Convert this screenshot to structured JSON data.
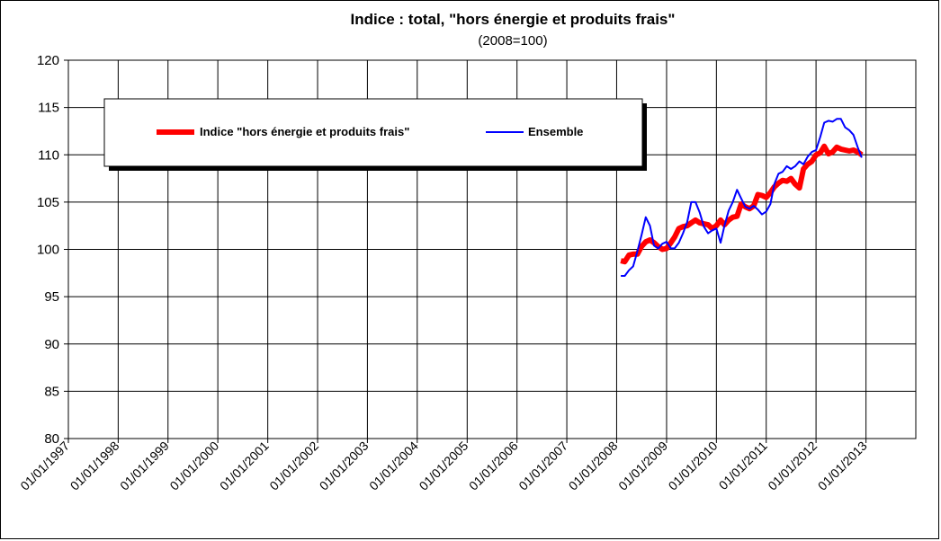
{
  "chart_data": {
    "type": "line",
    "title": "Indice : total, \"hors énergie et produits frais\"",
    "subtitle": "(2008=100)",
    "xlabel": "",
    "ylabel": "",
    "ylim": [
      80,
      120
    ],
    "yticks": [
      "120",
      "115",
      "110",
      "105",
      "100",
      "95",
      "90",
      "85",
      "80"
    ],
    "x_ticks": [
      "01/01/1997",
      "01/01/1998",
      "01/01/1999",
      "01/01/2000",
      "01/01/2001",
      "01/01/2002",
      "01/01/2003",
      "01/01/2004",
      "01/01/2005",
      "01/01/2006",
      "01/01/2007",
      "01/01/2008",
      "01/01/2009",
      "01/01/2010",
      "01/01/2011",
      "01/01/2012",
      "01/01/2013"
    ],
    "grid": true,
    "legend_position": "top-left",
    "series": [
      {
        "name": "Indice \"hors énergie et produits frais\"",
        "color": "#ff0000",
        "points": [
          [
            "2008-02-01",
            98.8
          ],
          [
            "2008-03-01",
            98.7
          ],
          [
            "2008-04-01",
            99.4
          ],
          [
            "2008-05-01",
            99.5
          ],
          [
            "2008-06-01",
            99.5
          ],
          [
            "2008-07-01",
            100.3
          ],
          [
            "2008-08-01",
            100.8
          ],
          [
            "2008-09-01",
            101.0
          ],
          [
            "2008-10-01",
            100.7
          ],
          [
            "2008-11-01",
            100.3
          ],
          [
            "2008-12-01",
            100.0
          ],
          [
            "2009-01-01",
            100.1
          ],
          [
            "2009-02-01",
            100.7
          ],
          [
            "2009-03-01",
            101.3
          ],
          [
            "2009-04-01",
            102.2
          ],
          [
            "2009-05-01",
            102.4
          ],
          [
            "2009-06-01",
            102.5
          ],
          [
            "2009-07-01",
            102.8
          ],
          [
            "2009-08-01",
            103.1
          ],
          [
            "2009-09-01",
            102.8
          ],
          [
            "2009-10-01",
            102.7
          ],
          [
            "2009-11-01",
            102.6
          ],
          [
            "2009-12-01",
            102.2
          ],
          [
            "2010-01-01",
            102.5
          ],
          [
            "2010-02-01",
            103.1
          ],
          [
            "2010-03-01",
            102.6
          ],
          [
            "2010-04-01",
            103.1
          ],
          [
            "2010-05-01",
            103.4
          ],
          [
            "2010-06-01",
            103.5
          ],
          [
            "2010-07-01",
            104.8
          ],
          [
            "2010-08-01",
            104.5
          ],
          [
            "2010-09-01",
            104.3
          ],
          [
            "2010-10-01",
            104.6
          ],
          [
            "2010-11-01",
            105.8
          ],
          [
            "2010-12-01",
            105.7
          ],
          [
            "2011-01-01",
            105.5
          ],
          [
            "2011-02-01",
            106.0
          ],
          [
            "2011-03-01",
            106.6
          ],
          [
            "2011-04-01",
            107.0
          ],
          [
            "2011-05-01",
            107.3
          ],
          [
            "2011-06-01",
            107.2
          ],
          [
            "2011-07-01",
            107.5
          ],
          [
            "2011-08-01",
            106.9
          ],
          [
            "2011-09-01",
            106.5
          ],
          [
            "2011-10-01",
            108.5
          ],
          [
            "2011-11-01",
            109.0
          ],
          [
            "2011-12-01",
            109.3
          ],
          [
            "2012-01-01",
            110.0
          ],
          [
            "2012-02-01",
            110.2
          ],
          [
            "2012-03-01",
            110.9
          ],
          [
            "2012-04-01",
            110.1
          ],
          [
            "2012-05-01",
            110.3
          ],
          [
            "2012-06-01",
            110.8
          ],
          [
            "2012-07-01",
            110.6
          ],
          [
            "2012-08-01",
            110.5
          ],
          [
            "2012-09-01",
            110.4
          ],
          [
            "2012-10-01",
            110.5
          ],
          [
            "2012-11-01",
            110.3
          ],
          [
            "2012-12-01",
            110.0
          ]
        ]
      },
      {
        "name": "Ensemble",
        "color": "#0000ff",
        "points": [
          [
            "2008-02-01",
            97.2
          ],
          [
            "2008-03-01",
            97.2
          ],
          [
            "2008-04-01",
            97.8
          ],
          [
            "2008-05-01",
            98.2
          ],
          [
            "2008-06-01",
            99.8
          ],
          [
            "2008-07-01",
            101.5
          ],
          [
            "2008-08-01",
            103.4
          ],
          [
            "2008-09-01",
            102.5
          ],
          [
            "2008-10-01",
            100.4
          ],
          [
            "2008-11-01",
            100.1
          ],
          [
            "2008-12-01",
            100.6
          ],
          [
            "2009-01-01",
            100.8
          ],
          [
            "2009-02-01",
            100.1
          ],
          [
            "2009-03-01",
            100.1
          ],
          [
            "2009-04-01",
            100.7
          ],
          [
            "2009-05-01",
            101.7
          ],
          [
            "2009-06-01",
            102.9
          ],
          [
            "2009-07-01",
            105.0
          ],
          [
            "2009-08-01",
            105.0
          ],
          [
            "2009-09-01",
            103.9
          ],
          [
            "2009-10-01",
            102.4
          ],
          [
            "2009-11-01",
            101.7
          ],
          [
            "2009-12-01",
            102.0
          ],
          [
            "2010-01-01",
            102.2
          ],
          [
            "2010-02-01",
            100.7
          ],
          [
            "2010-03-01",
            102.5
          ],
          [
            "2010-04-01",
            104.1
          ],
          [
            "2010-05-01",
            105.0
          ],
          [
            "2010-06-01",
            106.3
          ],
          [
            "2010-07-01",
            105.4
          ],
          [
            "2010-08-01",
            104.5
          ],
          [
            "2010-09-01",
            104.3
          ],
          [
            "2010-10-01",
            104.6
          ],
          [
            "2010-11-01",
            104.2
          ],
          [
            "2010-12-01",
            103.7
          ],
          [
            "2011-01-01",
            104.0
          ],
          [
            "2011-02-01",
            104.8
          ],
          [
            "2011-03-01",
            106.9
          ],
          [
            "2011-04-01",
            108.0
          ],
          [
            "2011-05-01",
            108.2
          ],
          [
            "2011-06-01",
            108.8
          ],
          [
            "2011-07-01",
            108.5
          ],
          [
            "2011-08-01",
            108.8
          ],
          [
            "2011-09-01",
            109.3
          ],
          [
            "2011-10-01",
            109.0
          ],
          [
            "2011-11-01",
            109.8
          ],
          [
            "2011-12-01",
            110.3
          ],
          [
            "2012-01-01",
            110.5
          ],
          [
            "2012-02-01",
            111.9
          ],
          [
            "2012-03-01",
            113.4
          ],
          [
            "2012-04-01",
            113.6
          ],
          [
            "2012-05-01",
            113.5
          ],
          [
            "2012-06-01",
            113.8
          ],
          [
            "2012-07-01",
            113.8
          ],
          [
            "2012-08-01",
            112.9
          ],
          [
            "2012-09-01",
            112.6
          ],
          [
            "2012-10-01",
            112.1
          ],
          [
            "2012-11-01",
            110.8
          ],
          [
            "2012-12-01",
            109.7
          ]
        ]
      }
    ]
  }
}
